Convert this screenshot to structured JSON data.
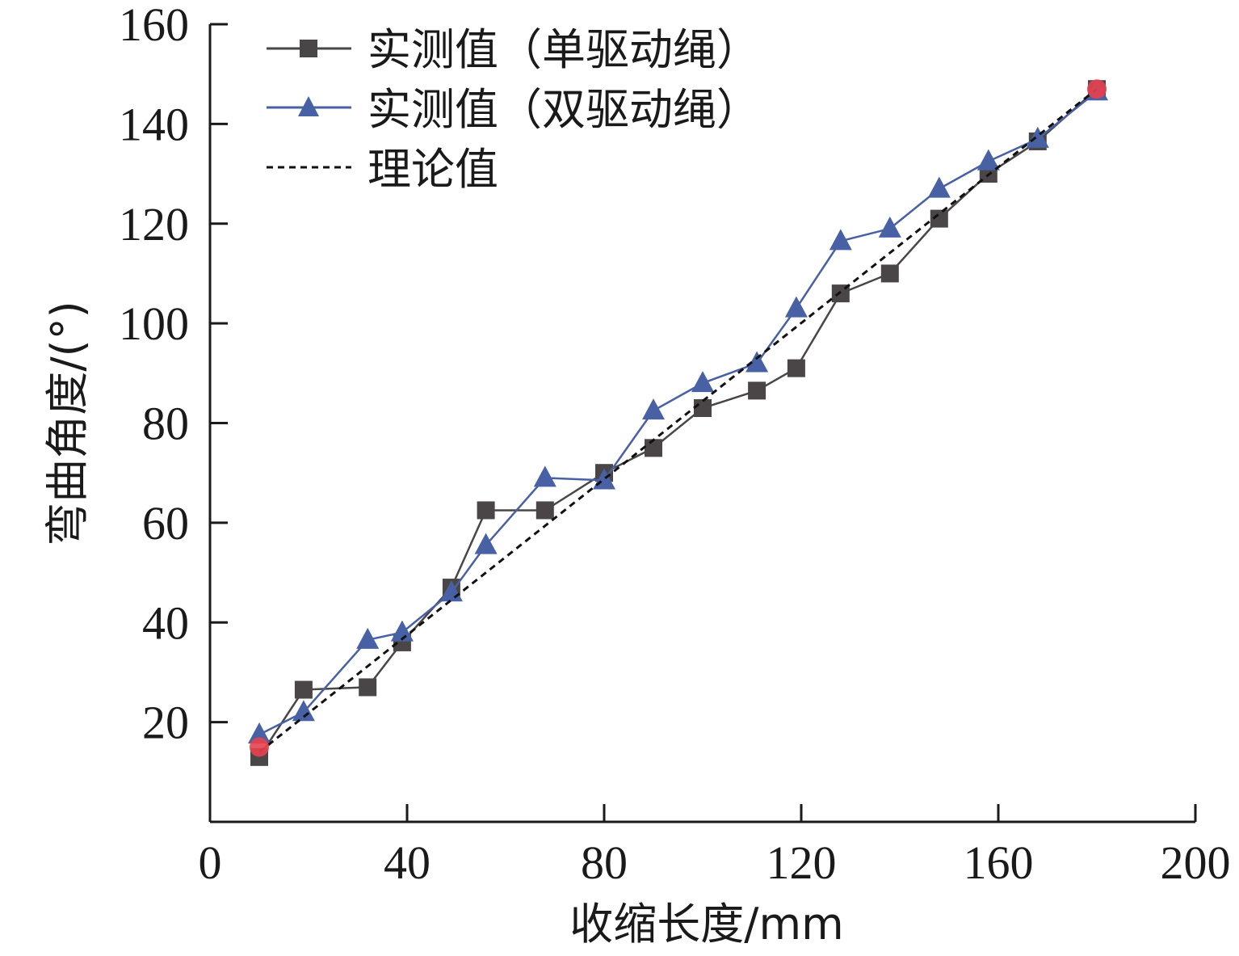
{
  "chart_data": {
    "type": "line",
    "title": "",
    "xlabel": "收缩长度/mm",
    "ylabel": "弯曲角度/(°)",
    "xlim": [
      0,
      200
    ],
    "ylim": [
      0,
      160
    ],
    "xticks": [
      0,
      40,
      80,
      120,
      160,
      200
    ],
    "yticks": [
      20,
      40,
      60,
      80,
      100,
      120,
      140,
      160
    ],
    "grid": false,
    "legend_position": "top-left",
    "series": [
      {
        "name": "实测值（单驱动绳）",
        "color": "#4a4546",
        "marker": "square",
        "dashed": false,
        "x": [
          10,
          19,
          32,
          39,
          49,
          56,
          68,
          80,
          90,
          100,
          111,
          119,
          128,
          138,
          148,
          158,
          168,
          180
        ],
        "y": [
          13,
          26.5,
          27,
          36,
          47,
          62.5,
          62.5,
          70,
          75,
          83,
          86.5,
          91,
          106,
          110,
          121,
          130,
          136.5,
          147
        ]
      },
      {
        "name": "实测值（双驱动绳）",
        "color": "#4861a5",
        "marker": "triangle",
        "dashed": false,
        "x": [
          10,
          19,
          32,
          39,
          49,
          56,
          68,
          80,
          90,
          100,
          111,
          119,
          128,
          138,
          148,
          158,
          168,
          180
        ],
        "y": [
          17.5,
          22,
          36.5,
          38,
          46,
          55.5,
          69,
          68.5,
          82.5,
          88,
          92,
          103,
          116.5,
          119,
          127,
          132.5,
          137,
          146.5
        ]
      },
      {
        "name": "理论值",
        "color": "#111111",
        "marker": "none",
        "dashed": true,
        "x": [
          10,
          180
        ],
        "y": [
          14,
          147
        ]
      }
    ],
    "highlight_points": [
      {
        "x": 10,
        "y": 15,
        "color": "#e8414e"
      },
      {
        "x": 180,
        "y": 147,
        "color": "#e8414e"
      }
    ]
  }
}
